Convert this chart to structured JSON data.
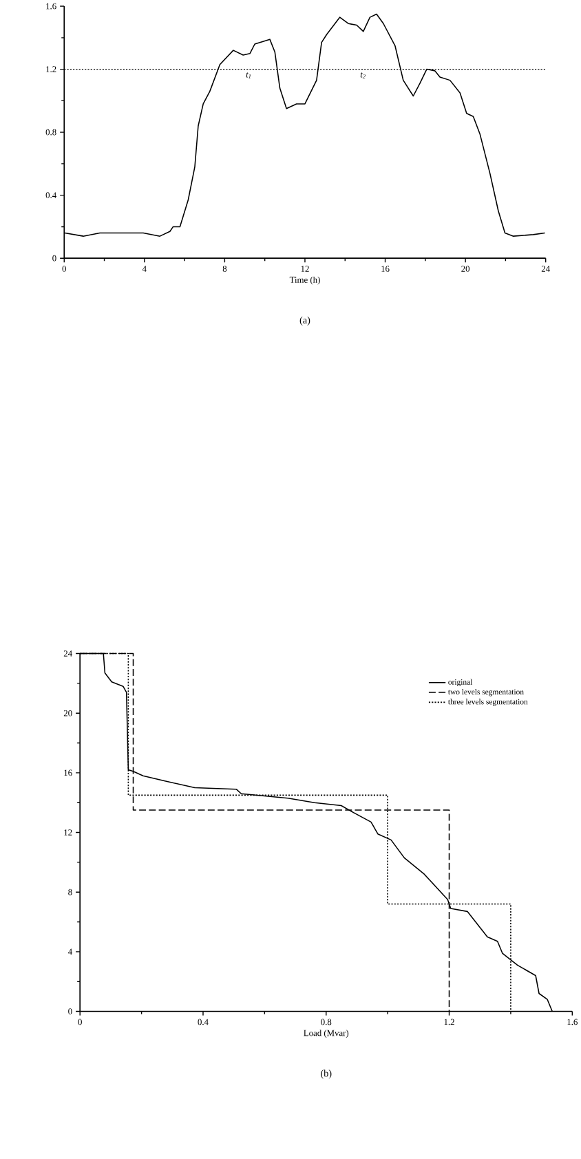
{
  "chart_data": [
    {
      "type": "line",
      "xlabel": "Time (h)",
      "xlim": [
        0,
        24
      ],
      "ylim": [
        0,
        1.6
      ],
      "xticks": [
        0,
        4,
        8,
        12,
        16,
        20,
        24
      ],
      "yticks": [
        0,
        0.4,
        0.8,
        1.2,
        1.6
      ],
      "legend": false,
      "series": [
        {
          "color": "#000000",
          "line_style": "solid",
          "x": [
            0.03,
            0.95,
            1.78,
            3.94,
            4.77,
            5.27,
            5.43,
            5.77,
            6.18,
            6.51,
            6.68,
            6.93,
            7.26,
            7.76,
            8.43,
            8.92,
            9.26,
            9.5,
            10.25,
            10.5,
            10.75,
            11.08,
            11.58,
            12.0,
            12.58,
            12.83,
            13.08,
            13.74,
            14.16,
            14.58,
            14.91,
            15.24,
            15.57,
            15.91,
            16.49,
            16.9,
            17.4,
            17.73,
            18.07,
            18.48,
            18.73,
            19.23,
            19.73,
            20.06,
            20.39,
            20.72,
            21.22,
            21.64,
            21.97,
            22.39,
            23.38,
            23.96
          ],
          "values": [
            0.16,
            0.14,
            0.16,
            0.16,
            0.14,
            0.17,
            0.2,
            0.2,
            0.37,
            0.58,
            0.84,
            0.98,
            1.06,
            1.23,
            1.32,
            1.29,
            1.3,
            1.36,
            1.39,
            1.31,
            1.08,
            0.95,
            0.98,
            0.98,
            1.13,
            1.37,
            1.42,
            1.53,
            1.49,
            1.48,
            1.44,
            1.53,
            1.55,
            1.49,
            1.35,
            1.13,
            1.03,
            1.11,
            1.2,
            1.19,
            1.15,
            1.13,
            1.05,
            0.92,
            0.9,
            0.79,
            0.54,
            0.3,
            0.16,
            0.14,
            0.15,
            0.16
          ]
        }
      ],
      "ref_lines": [
        {
          "axis": "y",
          "value": 1.2,
          "line_style": "dotted"
        }
      ],
      "annotations": [
        {
          "text": "t$_{1}$",
          "x": 9.2,
          "y": 1.2
        },
        {
          "text": "t$_{2}$",
          "x": 14.9,
          "y": 1.2
        },
        "(a)"
      ]
    },
    {
      "type": "line",
      "xlabel": "Load (Mvar)",
      "xlim": [
        0,
        1.6
      ],
      "ylim": [
        0,
        24
      ],
      "xticks": [
        0,
        0.4,
        0.8,
        1.2,
        1.6
      ],
      "yticks": [
        0,
        4,
        8,
        12,
        16,
        20,
        24
      ],
      "legend": "top right",
      "series": [
        {
          "name": "original",
          "color": "#000000",
          "line_style": "solid",
          "x": [
            0,
            0.076,
            0.081,
            0.103,
            0.14,
            0.151,
            0.157,
            0.173,
            0.205,
            0.276,
            0.373,
            0.508,
            0.524,
            0.676,
            0.762,
            0.849,
            0.892,
            0.946,
            0.968,
            1.011,
            1.054,
            1.119,
            1.195,
            1.205,
            1.259,
            1.324,
            1.357,
            1.373,
            1.422,
            1.481,
            1.492,
            1.519,
            1.535
          ],
          "values": [
            24,
            24,
            22.7,
            22.1,
            21.8,
            21.4,
            16.2,
            16.1,
            15.8,
            15.45,
            15.0,
            14.9,
            14.6,
            14.3,
            14.0,
            13.8,
            13.3,
            12.7,
            11.9,
            11.5,
            10.3,
            9.2,
            7.5,
            6.9,
            6.7,
            5.0,
            4.7,
            3.9,
            3.1,
            2.4,
            1.2,
            0.8,
            0
          ]
        },
        {
          "name": "two levels segmentation",
          "color": "#000000",
          "line_style": "dashed",
          "x": [
            0,
            0.173,
            0.173,
            1.2,
            1.2
          ],
          "values": [
            24,
            24,
            13.5,
            13.5,
            0
          ]
        },
        {
          "name": "three levels segmentation",
          "color": "#000000",
          "line_style": "dotted",
          "x": [
            0,
            0.157,
            0.157,
            1.0,
            1.0,
            1.4,
            1.4
          ],
          "values": [
            24,
            24,
            14.5,
            14.5,
            7.2,
            7.2,
            0
          ]
        }
      ],
      "annotations": [
        "(b)"
      ]
    }
  ]
}
